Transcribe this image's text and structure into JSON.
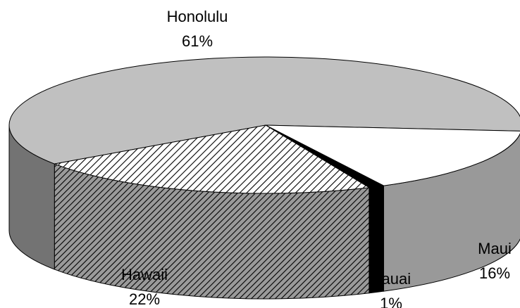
{
  "chart_data": {
    "type": "pie3d",
    "categories": [
      "Honolulu",
      "Maui",
      "Kauai",
      "Hawaii"
    ],
    "values": [
      61,
      16,
      1,
      22
    ],
    "value_labels": [
      "61%",
      "16%",
      "1%",
      "22%"
    ],
    "colors": [
      "#c0c0c0",
      "#ffffff",
      "#000000",
      "#ffffff"
    ],
    "patterns": [
      "solid",
      "solid",
      "solid",
      "diagonal-hatch"
    ]
  }
}
